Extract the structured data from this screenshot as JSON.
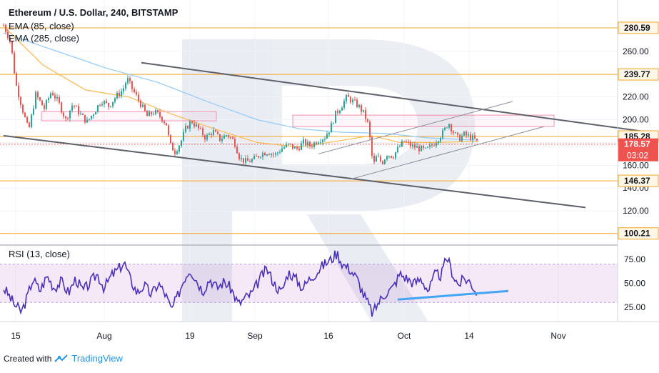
{
  "chart_data": [
    {
      "type": "candlestick",
      "title": "Ethereum / U.S. Dollar, 240, BITSTAMP",
      "indicators": [
        "EMA (85, close)",
        "EMA (285, close)"
      ],
      "ylim": [
        90,
        305
      ],
      "y_ticks": [
        120,
        140,
        160,
        180,
        200,
        220,
        240,
        260
      ],
      "y_tick_labels": [
        "120.00",
        "140.00",
        "160.00",
        "180.00",
        "200.00",
        "220.00",
        "240.00",
        "260.00"
      ],
      "x_ticks": [
        "15",
        "Aug",
        "19",
        "Sep",
        "16",
        "Oct",
        "14",
        "Nov"
      ],
      "levels": [
        {
          "value": 280.59,
          "label": "280.59",
          "color": "#f5a623"
        },
        {
          "value": 239.77,
          "label": "239.77",
          "color": "#f5a623"
        },
        {
          "value": 185.28,
          "label": "185.28",
          "color": "#f5a623"
        },
        {
          "value": 146.37,
          "label": "146.37",
          "color": "#f5a623"
        },
        {
          "value": 100.21,
          "label": "100.21",
          "color": "#f5a623"
        }
      ],
      "current_price": {
        "value": 178.57,
        "label": "178.57",
        "countdown": "03:02",
        "color": "#ef5350"
      },
      "price_path": [
        {
          "x": 5,
          "y": 283
        },
        {
          "x": 15,
          "y": 268
        },
        {
          "x": 22,
          "y": 232
        },
        {
          "x": 32,
          "y": 208
        },
        {
          "x": 40,
          "y": 190
        },
        {
          "x": 50,
          "y": 222
        },
        {
          "x": 62,
          "y": 210
        },
        {
          "x": 72,
          "y": 225
        },
        {
          "x": 82,
          "y": 215
        },
        {
          "x": 92,
          "y": 200
        },
        {
          "x": 102,
          "y": 214
        },
        {
          "x": 112,
          "y": 205
        },
        {
          "x": 122,
          "y": 198
        },
        {
          "x": 132,
          "y": 207
        },
        {
          "x": 142,
          "y": 217
        },
        {
          "x": 152,
          "y": 212
        },
        {
          "x": 162,
          "y": 220
        },
        {
          "x": 172,
          "y": 226
        },
        {
          "x": 178,
          "y": 236
        },
        {
          "x": 186,
          "y": 226
        },
        {
          "x": 196,
          "y": 215
        },
        {
          "x": 206,
          "y": 203
        },
        {
          "x": 216,
          "y": 207
        },
        {
          "x": 226,
          "y": 202
        },
        {
          "x": 233,
          "y": 196
        },
        {
          "x": 238,
          "y": 178
        },
        {
          "x": 245,
          "y": 172
        },
        {
          "x": 253,
          "y": 180
        },
        {
          "x": 260,
          "y": 192
        },
        {
          "x": 268,
          "y": 199
        },
        {
          "x": 278,
          "y": 192
        },
        {
          "x": 288,
          "y": 184
        },
        {
          "x": 298,
          "y": 190
        },
        {
          "x": 308,
          "y": 183
        },
        {
          "x": 318,
          "y": 187
        },
        {
          "x": 328,
          "y": 181
        },
        {
          "x": 336,
          "y": 166
        },
        {
          "x": 345,
          "y": 163
        },
        {
          "x": 355,
          "y": 165
        },
        {
          "x": 365,
          "y": 170
        },
        {
          "x": 375,
          "y": 172
        },
        {
          "x": 385,
          "y": 169
        },
        {
          "x": 395,
          "y": 175
        },
        {
          "x": 405,
          "y": 178
        },
        {
          "x": 415,
          "y": 174
        },
        {
          "x": 425,
          "y": 180
        },
        {
          "x": 435,
          "y": 177
        },
        {
          "x": 445,
          "y": 182
        },
        {
          "x": 455,
          "y": 185
        },
        {
          "x": 463,
          "y": 193
        },
        {
          "x": 470,
          "y": 205
        },
        {
          "x": 478,
          "y": 212
        },
        {
          "x": 486,
          "y": 220
        },
        {
          "x": 494,
          "y": 216
        },
        {
          "x": 502,
          "y": 212
        },
        {
          "x": 510,
          "y": 205
        },
        {
          "x": 516,
          "y": 195
        },
        {
          "x": 520,
          "y": 172
        },
        {
          "x": 523,
          "y": 160
        },
        {
          "x": 528,
          "y": 168
        },
        {
          "x": 535,
          "y": 162
        },
        {
          "x": 542,
          "y": 170
        },
        {
          "x": 550,
          "y": 168
        },
        {
          "x": 558,
          "y": 175
        },
        {
          "x": 566,
          "y": 181
        },
        {
          "x": 576,
          "y": 177
        },
        {
          "x": 586,
          "y": 175
        },
        {
          "x": 596,
          "y": 173
        },
        {
          "x": 606,
          "y": 178
        },
        {
          "x": 614,
          "y": 184
        },
        {
          "x": 622,
          "y": 190
        },
        {
          "x": 628,
          "y": 198
        },
        {
          "x": 634,
          "y": 190
        },
        {
          "x": 642,
          "y": 183
        },
        {
          "x": 650,
          "y": 187
        },
        {
          "x": 658,
          "y": 185
        },
        {
          "x": 664,
          "y": 183
        },
        {
          "x": 670,
          "y": 179
        }
      ],
      "ema85": [
        {
          "x": 5,
          "y": 282
        },
        {
          "x": 60,
          "y": 248
        },
        {
          "x": 120,
          "y": 226
        },
        {
          "x": 180,
          "y": 220
        },
        {
          "x": 240,
          "y": 205
        },
        {
          "x": 300,
          "y": 192
        },
        {
          "x": 360,
          "y": 180
        },
        {
          "x": 420,
          "y": 176
        },
        {
          "x": 470,
          "y": 181
        },
        {
          "x": 520,
          "y": 186
        },
        {
          "x": 560,
          "y": 180
        },
        {
          "x": 610,
          "y": 180
        },
        {
          "x": 670,
          "y": 181
        }
      ],
      "ema285": [
        {
          "x": 5,
          "y": 276
        },
        {
          "x": 80,
          "y": 260
        },
        {
          "x": 150,
          "y": 245
        },
        {
          "x": 220,
          "y": 233
        },
        {
          "x": 290,
          "y": 216
        },
        {
          "x": 360,
          "y": 200
        },
        {
          "x": 420,
          "y": 192
        },
        {
          "x": 480,
          "y": 189
        },
        {
          "x": 540,
          "y": 188
        },
        {
          "x": 600,
          "y": 184
        },
        {
          "x": 670,
          "y": 182
        }
      ],
      "trend_lines": [
        {
          "x1": 198,
          "y1": 250,
          "x2": 898,
          "y2": 190,
          "color": "#5d606b"
        },
        {
          "x1": 5,
          "y1": 186,
          "x2": 820,
          "y2": 123,
          "color": "#5d606b"
        },
        {
          "x1": 446,
          "y1": 170,
          "x2": 718,
          "y2": 216,
          "color": "#8a8f9c"
        },
        {
          "x1": 492,
          "y1": 148,
          "x2": 762,
          "y2": 194,
          "color": "#8a8f9c"
        }
      ],
      "zones": [
        {
          "x1": 58,
          "x2": 303,
          "y_top": 207,
          "y_bottom": 199,
          "color": "#f48fb1"
        },
        {
          "x1": 410,
          "x2": 776,
          "y_top": 204,
          "y_bottom": 194,
          "color": "#f48fb1"
        }
      ]
    },
    {
      "type": "line",
      "title": "RSI (13, close)",
      "ylim": [
        10,
        90
      ],
      "band": [
        30,
        70
      ],
      "y_ticks": [
        25,
        50,
        75
      ],
      "y_tick_labels": [
        "25.00",
        "50.00",
        "75.00"
      ],
      "rsi_path": [
        {
          "x": 5,
          "y": 45
        },
        {
          "x": 12,
          "y": 38
        },
        {
          "x": 20,
          "y": 28
        },
        {
          "x": 30,
          "y": 20
        },
        {
          "x": 38,
          "y": 35
        },
        {
          "x": 46,
          "y": 55
        },
        {
          "x": 56,
          "y": 42
        },
        {
          "x": 66,
          "y": 58
        },
        {
          "x": 76,
          "y": 45
        },
        {
          "x": 86,
          "y": 52
        },
        {
          "x": 96,
          "y": 40
        },
        {
          "x": 106,
          "y": 55
        },
        {
          "x": 116,
          "y": 42
        },
        {
          "x": 126,
          "y": 50
        },
        {
          "x": 136,
          "y": 60
        },
        {
          "x": 146,
          "y": 45
        },
        {
          "x": 156,
          "y": 58
        },
        {
          "x": 166,
          "y": 65
        },
        {
          "x": 174,
          "y": 72
        },
        {
          "x": 182,
          "y": 55
        },
        {
          "x": 192,
          "y": 40
        },
        {
          "x": 202,
          "y": 48
        },
        {
          "x": 212,
          "y": 38
        },
        {
          "x": 222,
          "y": 50
        },
        {
          "x": 232,
          "y": 38
        },
        {
          "x": 240,
          "y": 22
        },
        {
          "x": 248,
          "y": 35
        },
        {
          "x": 258,
          "y": 55
        },
        {
          "x": 266,
          "y": 65
        },
        {
          "x": 274,
          "y": 55
        },
        {
          "x": 284,
          "y": 42
        },
        {
          "x": 294,
          "y": 55
        },
        {
          "x": 304,
          "y": 45
        },
        {
          "x": 314,
          "y": 52
        },
        {
          "x": 324,
          "y": 44
        },
        {
          "x": 334,
          "y": 28
        },
        {
          "x": 344,
          "y": 35
        },
        {
          "x": 354,
          "y": 40
        },
        {
          "x": 364,
          "y": 55
        },
        {
          "x": 374,
          "y": 65
        },
        {
          "x": 384,
          "y": 50
        },
        {
          "x": 394,
          "y": 40
        },
        {
          "x": 404,
          "y": 62
        },
        {
          "x": 414,
          "y": 55
        },
        {
          "x": 424,
          "y": 45
        },
        {
          "x": 434,
          "y": 55
        },
        {
          "x": 444,
          "y": 62
        },
        {
          "x": 454,
          "y": 70
        },
        {
          "x": 464,
          "y": 75
        },
        {
          "x": 472,
          "y": 82
        },
        {
          "x": 480,
          "y": 70
        },
        {
          "x": 490,
          "y": 65
        },
        {
          "x": 500,
          "y": 55
        },
        {
          "x": 508,
          "y": 40
        },
        {
          "x": 516,
          "y": 28
        },
        {
          "x": 522,
          "y": 18
        },
        {
          "x": 530,
          "y": 30
        },
        {
          "x": 540,
          "y": 40
        },
        {
          "x": 550,
          "y": 45
        },
        {
          "x": 560,
          "y": 60
        },
        {
          "x": 570,
          "y": 55
        },
        {
          "x": 580,
          "y": 50
        },
        {
          "x": 590,
          "y": 55
        },
        {
          "x": 600,
          "y": 42
        },
        {
          "x": 610,
          "y": 60
        },
        {
          "x": 618,
          "y": 58
        },
        {
          "x": 626,
          "y": 78
        },
        {
          "x": 634,
          "y": 60
        },
        {
          "x": 642,
          "y": 48
        },
        {
          "x": 650,
          "y": 55
        },
        {
          "x": 658,
          "y": 52
        },
        {
          "x": 664,
          "y": 45
        },
        {
          "x": 670,
          "y": 38
        }
      ],
      "support_line": {
        "x1": 557,
        "y1": 33,
        "x2": 712,
        "y2": 42,
        "color": "#42a5f5"
      }
    }
  ],
  "footer": {
    "created_with": "Created with",
    "brand": "TradingView"
  }
}
